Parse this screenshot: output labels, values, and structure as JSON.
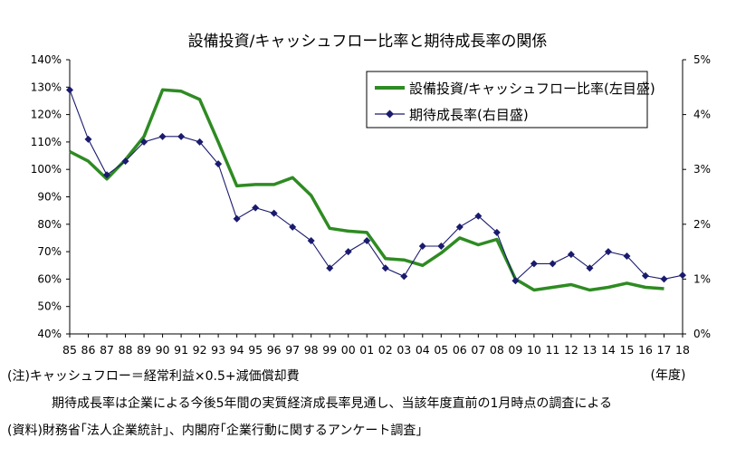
{
  "chart_data": {
    "type": "line",
    "title": "設備投資/キャッシュフロー比率と期待成長率の関係",
    "x_unit": "(年度)",
    "categories": [
      "85",
      "86",
      "87",
      "88",
      "89",
      "90",
      "91",
      "92",
      "93",
      "94",
      "95",
      "96",
      "97",
      "98",
      "99",
      "00",
      "01",
      "02",
      "03",
      "04",
      "05",
      "06",
      "07",
      "08",
      "09",
      "10",
      "11",
      "12",
      "13",
      "14",
      "15",
      "16",
      "17",
      "18"
    ],
    "y_left": {
      "ticks": [
        "40%",
        "50%",
        "60%",
        "70%",
        "80%",
        "90%",
        "100%",
        "110%",
        "120%",
        "130%",
        "140%"
      ],
      "range": [
        40,
        140
      ]
    },
    "y_right": {
      "ticks": [
        "0%",
        "1%",
        "2%",
        "3%",
        "4%",
        "5%"
      ],
      "range": [
        0,
        5
      ]
    },
    "grid": false,
    "legend_position": "top-right",
    "series": [
      {
        "name": "設備投資/キャッシュフロー比率(左目盛)",
        "axis": "left",
        "color": "#2e8b22",
        "values": [
          106.5,
          103,
          96.5,
          103.5,
          112,
          129,
          128.5,
          125.5,
          110,
          94,
          94.5,
          94.5,
          97,
          90.5,
          78.5,
          77.5,
          77,
          67.5,
          67,
          65,
          69.5,
          75,
          72.5,
          74.5,
          60,
          56,
          57,
          58,
          56,
          57,
          58.5,
          57,
          56.5,
          null
        ]
      },
      {
        "name": "期待成長率(右目盛)",
        "axis": "right",
        "color": "#1a1a6e",
        "values": [
          4.45,
          3.55,
          2.9,
          3.15,
          3.5,
          3.6,
          3.6,
          3.5,
          3.1,
          2.1,
          2.3,
          2.2,
          1.95,
          1.7,
          1.2,
          1.5,
          1.7,
          1.2,
          1.05,
          1.6,
          1.6,
          1.95,
          2.15,
          1.85,
          0.97,
          1.28,
          1.28,
          1.45,
          1.2,
          1.5,
          1.42,
          1.06,
          1.0,
          1.07
        ]
      }
    ]
  },
  "notes": {
    "note1": "(注)キャッシュフロー＝経常利益×0.5+減価償却費",
    "note2": "期待成長率は企業による今後5年間の実質経済成長率見通し、当該年度直前の1月時点の調査による",
    "source": "(資料)財務省｢法人企業統計｣、内閣府｢企業行動に関するアンケート調査｣"
  }
}
